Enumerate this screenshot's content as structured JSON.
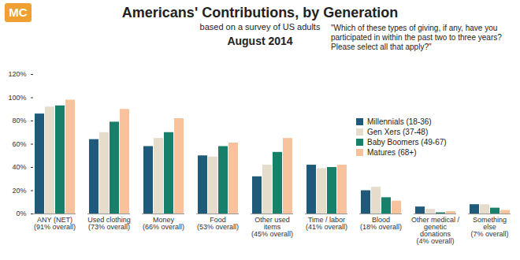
{
  "chart_data": {
    "type": "bar",
    "logo": "MC",
    "title": "Americans' Contributions, by Generation",
    "subtitle": "based on a survey of US adults",
    "date": "August 2014",
    "annotation": "\"Which of these types of giving, if any, have you participated in within the past two to three years? Please select all that apply?\"",
    "categories": [
      "ANY (NET)\n(91% overall)",
      "Used clothing\n(73% overall)",
      "Money\n(66% overall)",
      "Food\n(53% overall)",
      "Other used\nitems\n(45% overall)",
      "Time / labor\n(41% overall)",
      "Blood\n(18% overall)",
      "Other medical /\ngenetic\ndonations\n(4% overall)",
      "Something\nelse\n(7% overall)"
    ],
    "series": [
      {
        "name": "Millennials (18-36)",
        "color": "#1f5a7a",
        "values": [
          86,
          64,
          58,
          50,
          32,
          42,
          20,
          6,
          8
        ]
      },
      {
        "name": "Gen Xers (37-48)",
        "color": "#e6dccb",
        "values": [
          92,
          70,
          65,
          49,
          42,
          39,
          23,
          4,
          8
        ]
      },
      {
        "name": "Baby Boomers (49-67)",
        "color": "#17806a",
        "values": [
          93,
          79,
          70,
          58,
          53,
          40,
          14,
          1,
          5
        ]
      },
      {
        "name": "Matures (68+)",
        "color": "#f8c39c",
        "values": [
          98,
          90,
          82,
          61,
          65,
          42,
          11,
          2,
          3
        ]
      }
    ],
    "ylim": [
      0,
      120
    ],
    "yticks": [
      {
        "value": 0,
        "label": "0%"
      },
      {
        "value": 20,
        "label": "20%"
      },
      {
        "value": 40,
        "label": "40%"
      },
      {
        "value": 60,
        "label": "60%"
      },
      {
        "value": 80,
        "label": "80%"
      },
      {
        "value": 100,
        "label": "100%"
      },
      {
        "value": 120,
        "label": "120%"
      }
    ],
    "grid": false,
    "legend": "right"
  }
}
